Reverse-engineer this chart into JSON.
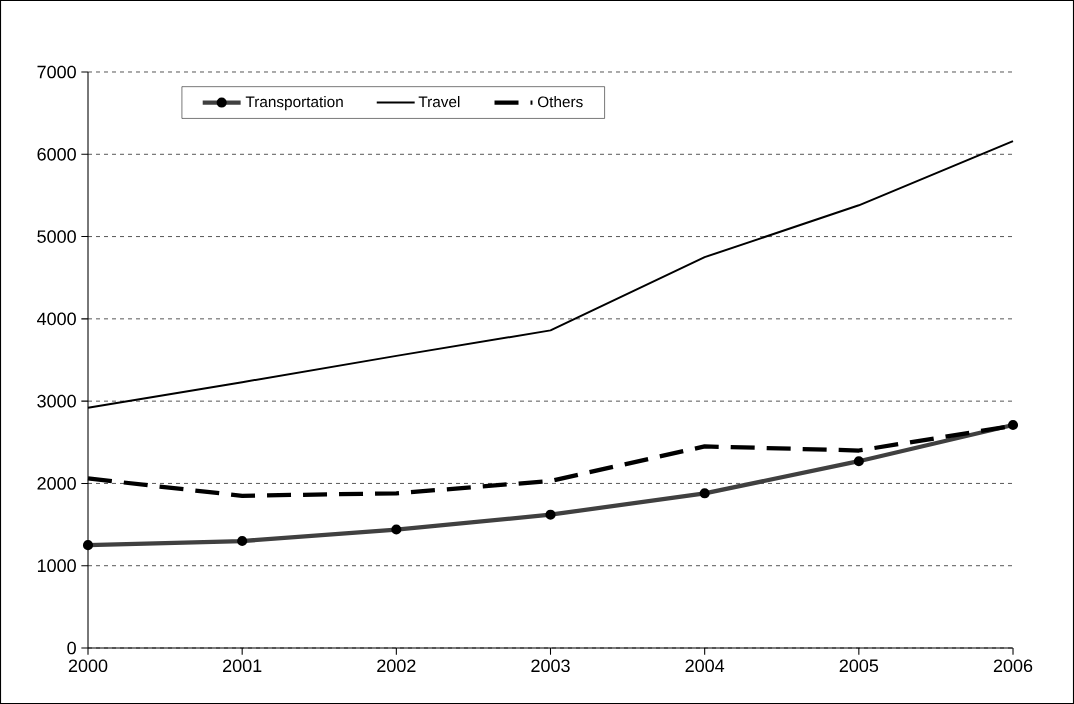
{
  "chart_data": {
    "type": "line",
    "x": [
      2000,
      2001,
      2002,
      2003,
      2004,
      2005,
      2006
    ],
    "series": [
      {
        "name": "Transportation",
        "color": "#404040",
        "marker": "circle",
        "line_style": "solid",
        "values": [
          1250,
          1300,
          1440,
          1620,
          1880,
          2270,
          2710
        ]
      },
      {
        "name": "Travel",
        "color": "#000000",
        "marker": "none",
        "line_style": "solid",
        "values": [
          2920,
          3230,
          3550,
          3860,
          4750,
          5380,
          6160
        ]
      },
      {
        "name": "Others",
        "color": "#000000",
        "marker": "none",
        "line_style": "dashed",
        "values": [
          2060,
          1850,
          1880,
          2030,
          2450,
          2400,
          2700
        ]
      }
    ],
    "xlim": [
      2000,
      2006
    ],
    "xticks": [
      2000,
      2001,
      2002,
      2003,
      2004,
      2005,
      2006
    ],
    "ylim": [
      0,
      7000
    ],
    "yticks": [
      0,
      1000,
      2000,
      3000,
      4000,
      5000,
      6000,
      7000
    ],
    "grid": "y",
    "legend": "top"
  }
}
